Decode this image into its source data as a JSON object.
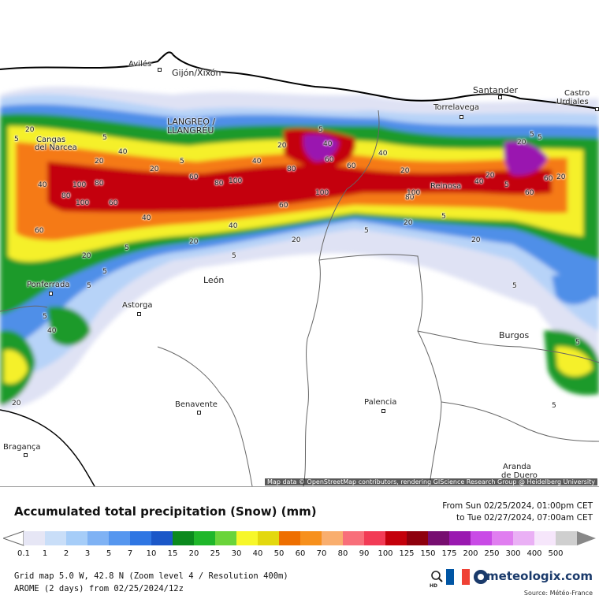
{
  "map": {
    "cities": [
      {
        "name": "Avilés",
        "big": false
      },
      {
        "name": "Gijón/Xixón",
        "big": true
      },
      {
        "name": "Santander",
        "big": true
      },
      {
        "name": "Castro",
        "big": false
      },
      {
        "name": "Urdiales",
        "big": false
      },
      {
        "name": "Torrelavega",
        "big": false
      },
      {
        "name": "LANGREO /",
        "big": true
      },
      {
        "name": "LLANGRÉU",
        "big": true
      },
      {
        "name": "Cangas",
        "big": false
      },
      {
        "name": "del Narcea",
        "big": false
      },
      {
        "name": "Reinosa",
        "big": false
      },
      {
        "name": "Ponferrada",
        "big": false
      },
      {
        "name": "León",
        "big": true
      },
      {
        "name": "Astorga",
        "big": false
      },
      {
        "name": "Burgos",
        "big": true
      },
      {
        "name": "Benavente",
        "big": false
      },
      {
        "name": "Palencia",
        "big": false
      },
      {
        "name": "Bragança",
        "big": false
      },
      {
        "name": "Aranda",
        "big": false
      },
      {
        "name": "de Duero",
        "big": false
      }
    ],
    "contour_labels": [
      "5",
      "20",
      "40",
      "60",
      "80",
      "100",
      "5",
      "20",
      "40",
      "60",
      "80",
      "100",
      "5",
      "20",
      "40",
      "60",
      "80",
      "100",
      "5",
      "20",
      "40",
      "60",
      "80",
      "100",
      "5",
      "20",
      "40",
      "60",
      "5",
      "20",
      "40",
      "5",
      "20",
      "5",
      "5",
      "20",
      "5",
      "5",
      "5",
      "20",
      "5",
      "20",
      "5",
      "5",
      "60",
      "40",
      "20",
      "20",
      "60",
      "80",
      "100",
      "60",
      "40",
      "20",
      "5",
      "20",
      "40",
      "5"
    ],
    "attribution": "Map data © OpenStreetMap contributors, rendering GIScience Research Group @ Heidelberg University"
  },
  "legend": {
    "title": "Accumulated total precipitation (Snow) (mm)",
    "period_from": "From Sun 02/25/2024, 01:00pm CET",
    "period_to": "to Tue 02/27/2024, 07:00am CET",
    "ticks": [
      "0.1",
      "1",
      "2",
      "3",
      "5",
      "7",
      "10",
      "15",
      "20",
      "25",
      "30",
      "40",
      "50",
      "60",
      "70",
      "80",
      "90",
      "100",
      "125",
      "150",
      "175",
      "200",
      "250",
      "300",
      "400",
      "500"
    ],
    "colors": [
      "#e6e6f5",
      "#c9def8",
      "#a6cdf8",
      "#7fb2f4",
      "#5596ef",
      "#2f76e3",
      "#1b57c8",
      "#0b8a1e",
      "#1fb72a",
      "#6ad43a",
      "#f7f72a",
      "#e3d80e",
      "#ee6f00",
      "#f7901c",
      "#f9ae6e",
      "#f86f7a",
      "#f23b55",
      "#c4000b",
      "#8e000d",
      "#770e70",
      "#9a19b0",
      "#c94be6",
      "#e07ef0",
      "#eab0f5",
      "#f6e6fb",
      "#cfcfcf"
    ],
    "grid_line": "Grid map 5.0 W, 42.8 N (Zoom level 4 / Resolution 400m)",
    "model_line": "AROME (2 days) from 02/25/2024/12z",
    "hd_label": "HD",
    "brand": "meteologix.com",
    "source": "Source: Météo-France"
  }
}
